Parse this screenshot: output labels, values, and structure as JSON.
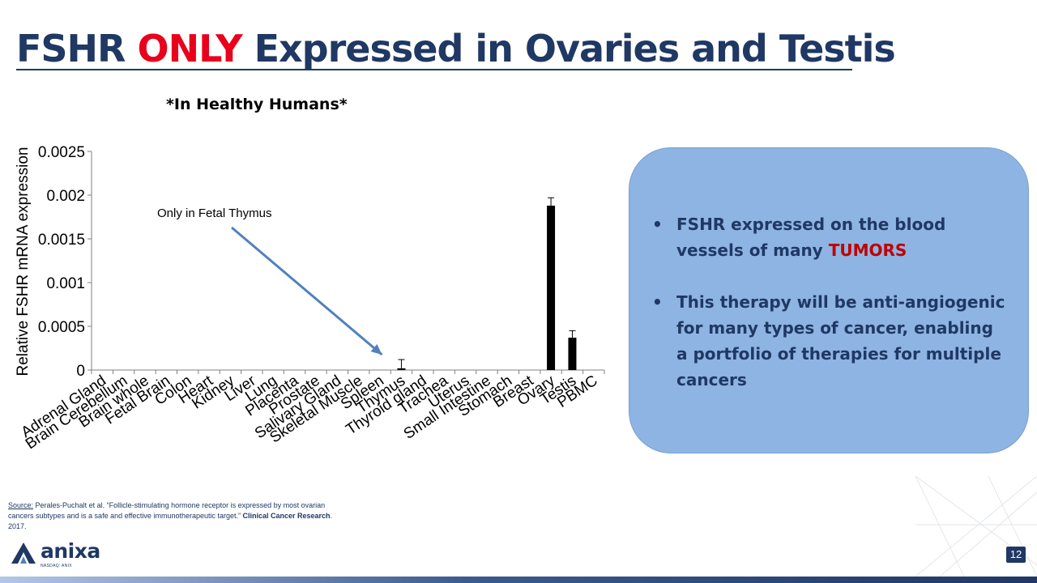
{
  "slide": {
    "title_part1": "FSHR ",
    "title_part2": "ONLY",
    "title_part3": " Expressed in Ovaries and Testis",
    "subtitle": "*In Healthy Humans*",
    "page_number": "12"
  },
  "callout": {
    "bullet1_text": "FSHR expressed on the blood vessels of many ",
    "bullet1_highlight": "TUMORS",
    "bullet2_text": "This therapy will be anti-angiogenic for many types of cancer, enabling a portfolio of therapies for multiple cancers"
  },
  "source": {
    "label": "Source:",
    "text": " Perales-Puchalt et al.  “Follicle-stimulating hormone receptor is expressed by most ovarian cancers subtypes and is a safe and effective immunotherapeutic target.”  ",
    "journal": "Clinical Cancer Research",
    "year": ". 2017."
  },
  "logo": {
    "name": "anixa",
    "ticker": "NASDAQ: ANIX"
  },
  "colors": {
    "title": "#1f3864",
    "highlight": "#e8001c",
    "tumors": "#c00000",
    "callout_fill": "#8eb4e3",
    "annotation_arrow": "#4f81bd",
    "bars": "#000000"
  },
  "chart_data": {
    "type": "bar",
    "ylabel": "Relative FSHR mRNA expression",
    "ylim": [
      0,
      0.0025
    ],
    "yticks": [
      0,
      0.0005,
      0.001,
      0.0015,
      0.002,
      0.0025
    ],
    "ytick_labels": [
      "0",
      "0.0005",
      "0.001",
      "0.0015",
      "0.002",
      "0.0025"
    ],
    "categories": [
      "Adrenal Gland",
      "Brain Cerebellum",
      "Brain whole",
      "Fetal Brain",
      "Colon",
      "Heart",
      "Kidney",
      "Liver",
      "Lung",
      "Placenta",
      "Prostate",
      "Salivary Gland",
      "Skeletal Muscle",
      "Spleen",
      "Thymus",
      "Thyroid gland",
      "Trachea",
      "Uterus",
      "Small Intestine",
      "Stomach",
      "Breast",
      "Ovary",
      "Testis",
      "PBMC"
    ],
    "values": [
      0,
      0,
      0,
      0,
      0,
      0,
      0,
      0,
      0,
      0,
      0,
      0,
      0,
      0,
      2e-05,
      0,
      0,
      0,
      0,
      0,
      0,
      0.00188,
      0.00037,
      0
    ],
    "errors": [
      0,
      0,
      0,
      0,
      0,
      0,
      0,
      0,
      0,
      0,
      0,
      0,
      0,
      0,
      0.0001,
      0,
      0,
      0,
      0,
      0,
      0,
      9e-05,
      8e-05,
      0
    ],
    "annotation": {
      "text": "Only in Fetal Thymus",
      "target_category": "Thymus"
    },
    "grid": false,
    "legend": "none"
  }
}
